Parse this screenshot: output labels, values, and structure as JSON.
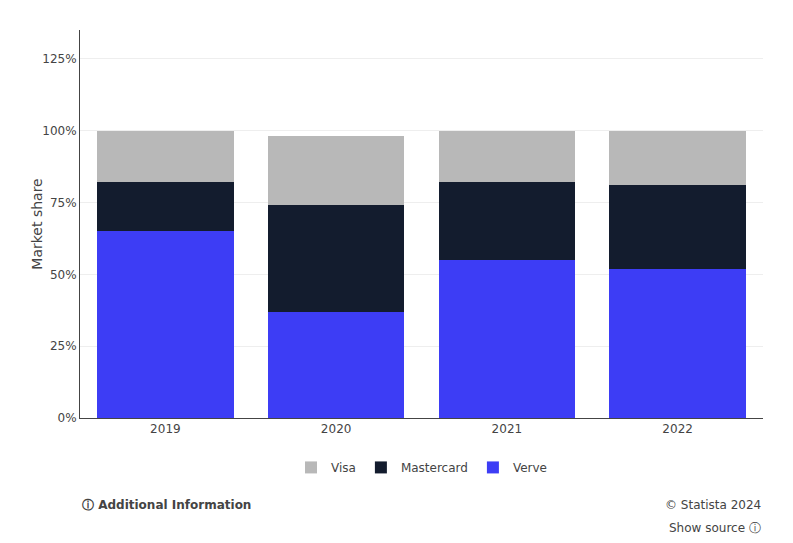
{
  "chart_data": {
    "type": "bar",
    "stacked": true,
    "categories": [
      "2019",
      "2020",
      "2021",
      "2022"
    ],
    "series": [
      {
        "name": "Verve",
        "color": "#3d3df5",
        "values": [
          65,
          37,
          55,
          52
        ]
      },
      {
        "name": "Mastercard",
        "color": "#131c2e",
        "values": [
          17,
          37,
          27,
          29
        ]
      },
      {
        "name": "Visa",
        "color": "#b8b8b8",
        "values": [
          18,
          24,
          18,
          19
        ]
      }
    ],
    "y_label": "Market share",
    "ylim": [
      0,
      135
    ],
    "yticks": [
      {
        "value": 0,
        "label": "0%"
      },
      {
        "value": 25,
        "label": "25%"
      },
      {
        "value": 50,
        "label": "50%"
      },
      {
        "value": 75,
        "label": "75%"
      },
      {
        "value": 100,
        "label": "100%"
      },
      {
        "value": 125,
        "label": "125%"
      }
    ],
    "grid": true,
    "legend": "bottom",
    "annotations": [
      "ⓘ Additional Information",
      "© Statista 2024",
      "Show source ⓘ"
    ]
  }
}
